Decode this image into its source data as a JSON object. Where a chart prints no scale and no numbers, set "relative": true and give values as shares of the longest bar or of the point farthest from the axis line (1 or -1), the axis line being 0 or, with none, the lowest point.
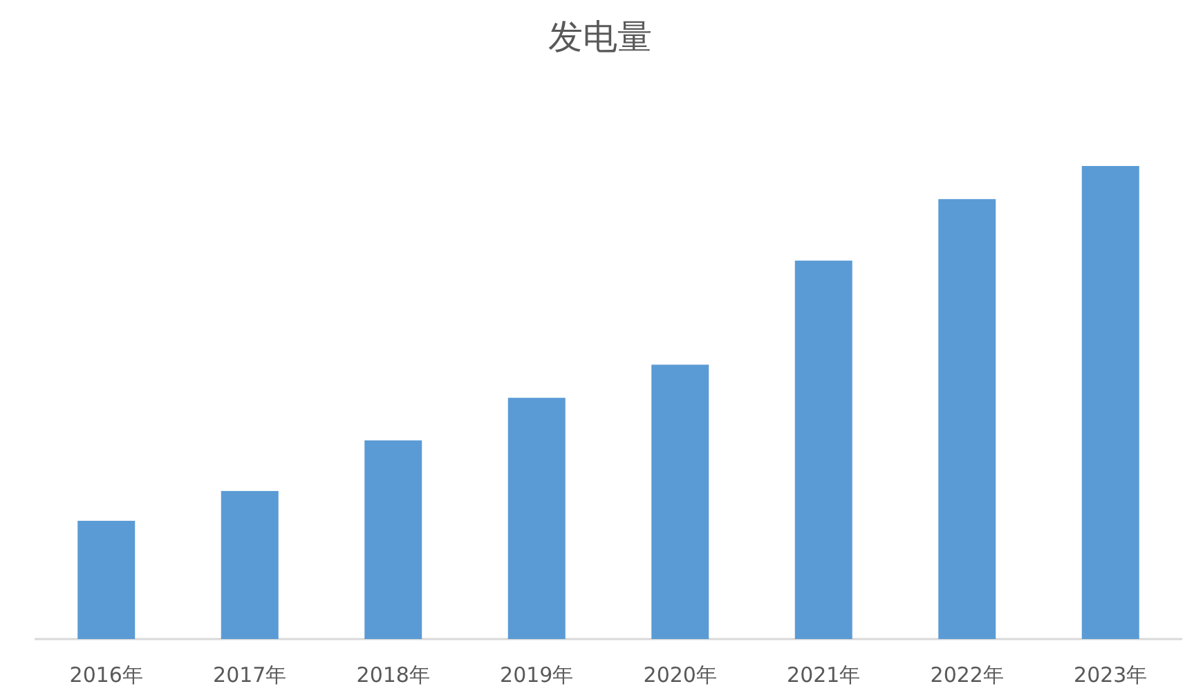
{
  "chart_data": {
    "type": "bar",
    "title": "发电量",
    "categories": [
      "2016年",
      "2017年",
      "2018年",
      "2019年",
      "2020年",
      "2021年",
      "2022年",
      "2023年"
    ],
    "values": [
      0.25,
      0.313,
      0.42,
      0.51,
      0.58,
      0.8,
      0.93,
      1
    ],
    "color": "#5b9bd5",
    "relative": true
  }
}
